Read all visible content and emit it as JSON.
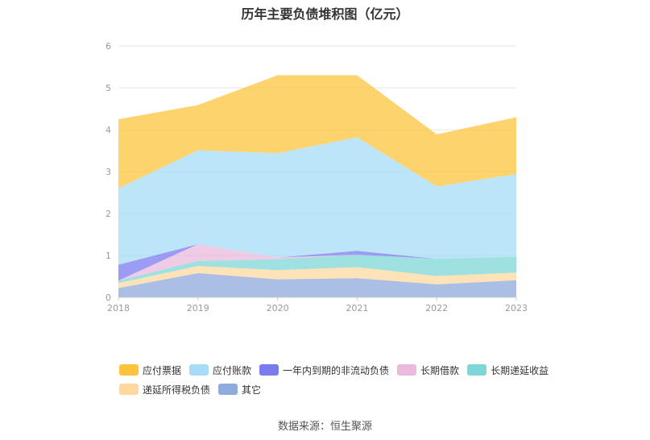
{
  "chart_data": {
    "type": "area",
    "stacked": true,
    "title": "历年主要负债堆积图（亿元）",
    "x": [
      "2018",
      "2019",
      "2020",
      "2021",
      "2022",
      "2023"
    ],
    "ylim": [
      0,
      6
    ],
    "yticks": [
      "0",
      "1",
      "2",
      "3",
      "4",
      "5",
      "6"
    ],
    "grid": true,
    "legend_position": "bottom",
    "series": [
      {
        "name": "其它",
        "color": "#8faadc",
        "values": [
          0.22,
          0.58,
          0.43,
          0.46,
          0.31,
          0.41
        ]
      },
      {
        "name": "递延所得税负债",
        "color": "#fdd9a0",
        "values": [
          0.12,
          0.17,
          0.22,
          0.26,
          0.2,
          0.18
        ]
      },
      {
        "name": "长期递延收益",
        "color": "#7fd6d6",
        "values": [
          0.06,
          0.12,
          0.26,
          0.3,
          0.41,
          0.38
        ]
      },
      {
        "name": "长期借款",
        "color": "#ebb9de",
        "values": [
          0.0,
          0.4,
          0.04,
          0.0,
          0.0,
          0.0
        ]
      },
      {
        "name": "一年内到期的非流动负债",
        "color": "#7b7bf0",
        "values": [
          0.38,
          0.0,
          0.0,
          0.09,
          0.0,
          0.0
        ]
      },
      {
        "name": "应付账款",
        "color": "#a7dcf8",
        "values": [
          1.82,
          2.24,
          2.49,
          2.71,
          1.73,
          1.97
        ]
      },
      {
        "name": "应付票据",
        "color": "#fcc43e",
        "values": [
          1.65,
          1.08,
          1.86,
          1.48,
          1.24,
          1.36
        ]
      }
    ],
    "legend_rows": [
      [
        "应付票据",
        "应付账款",
        "一年内到期的非流动负债",
        "长期借款",
        "长期递延收益"
      ],
      [
        "递延所得税负债",
        "其它"
      ]
    ]
  },
  "source_text": "数据来源：恒生聚源"
}
